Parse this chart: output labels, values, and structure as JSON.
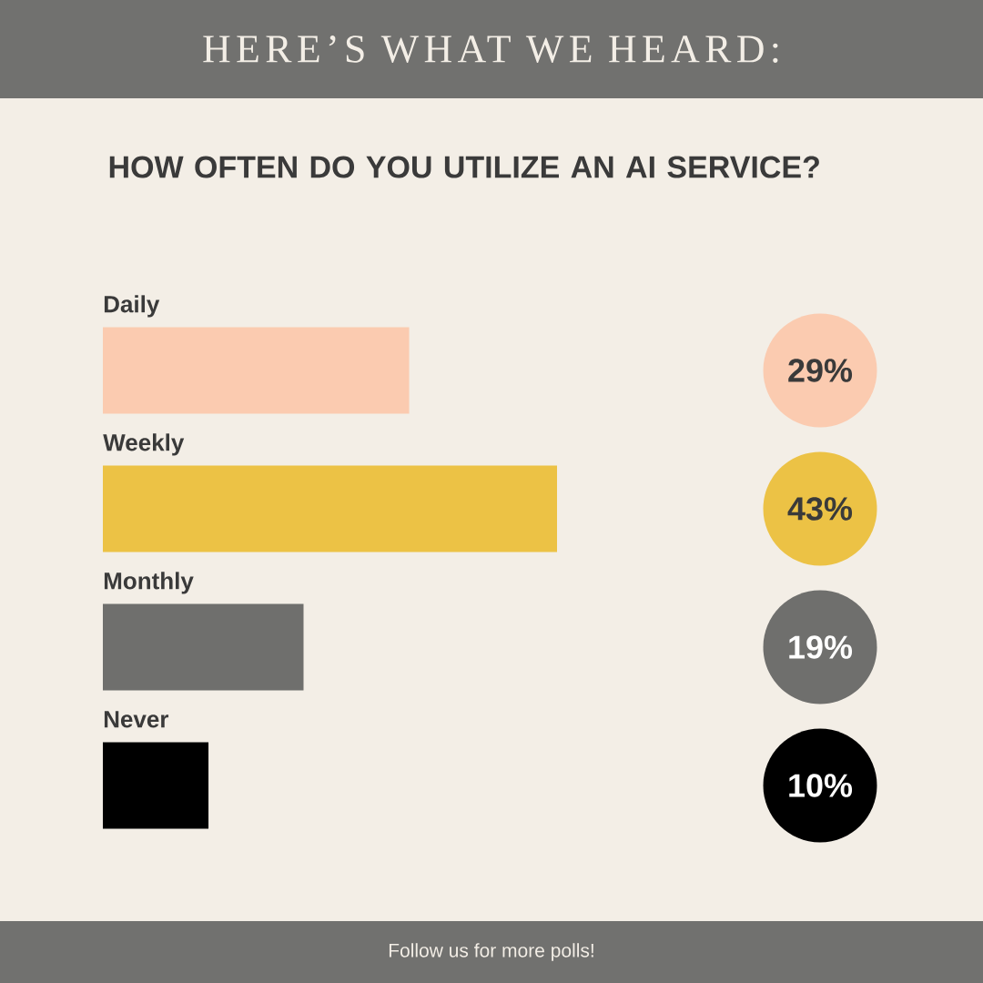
{
  "chart_data": {
    "type": "bar",
    "orientation": "horizontal",
    "title": "HERE’S WHAT WE HEARD:",
    "subtitle": "HOW OFTEN DO YOU UTILIZE AN AI SERVICE?",
    "annotations": [
      "Follow us for more polls!"
    ],
    "categories": [
      "Daily",
      "Weekly",
      "Monthly",
      "Never"
    ],
    "values": [
      29,
      43,
      19,
      10
    ],
    "value_labels": [
      "29%",
      "43%",
      "19%",
      "10%"
    ],
    "colors": [
      "#fbcbb0",
      "#ecc245",
      "#6f6f6d",
      "#000000"
    ],
    "tick_labels": false
  }
}
